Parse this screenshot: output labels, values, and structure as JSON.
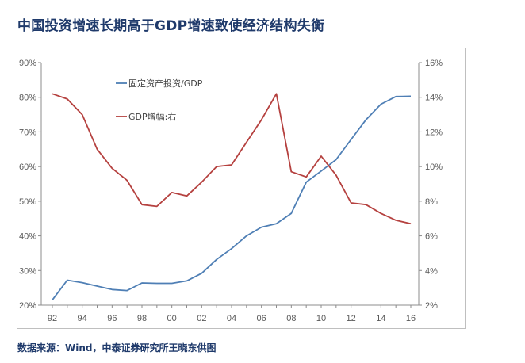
{
  "title": "中国投资增速长期高于GDP增速致使经济结构失衡",
  "source": "数据来源：Wind，中泰证券研究所王晓东供图",
  "chart_data": {
    "type": "line",
    "categories": [
      "92",
      "93",
      "94",
      "95",
      "96",
      "97",
      "98",
      "99",
      "00",
      "01",
      "02",
      "03",
      "04",
      "05",
      "06",
      "07",
      "08",
      "09",
      "10",
      "11",
      "12",
      "13",
      "14",
      "15",
      "16"
    ],
    "x_tick_labels": [
      "92",
      "94",
      "96",
      "98",
      "00",
      "02",
      "04",
      "06",
      "08",
      "10",
      "12",
      "14",
      "16"
    ],
    "series": [
      {
        "name": "固定资产投资/GDP",
        "axis": "left",
        "color": "#4f7fb5",
        "values": [
          21.5,
          27.2,
          26.5,
          25.5,
          24.5,
          24.2,
          26.4,
          26.3,
          26.3,
          27.0,
          29.2,
          33.2,
          36.3,
          40.0,
          42.5,
          43.5,
          46.5,
          55.5,
          58.7,
          62.0,
          67.8,
          73.5,
          78.0,
          80.2,
          80.3
        ]
      },
      {
        "name": "GDP增幅:右",
        "axis": "right",
        "color": "#b5413f",
        "values": [
          14.2,
          13.9,
          13.0,
          11.0,
          9.9,
          9.2,
          7.8,
          7.7,
          8.5,
          8.3,
          9.1,
          10.0,
          10.1,
          11.4,
          12.7,
          14.2,
          9.7,
          9.4,
          10.6,
          9.5,
          7.9,
          7.8,
          7.3,
          6.9,
          6.7
        ]
      }
    ],
    "y_left": {
      "ticks": [
        "20%",
        "30%",
        "40%",
        "50%",
        "60%",
        "70%",
        "80%",
        "90%"
      ],
      "range": [
        20,
        90
      ]
    },
    "y_right": {
      "ticks": [
        "2%",
        "4%",
        "6%",
        "8%",
        "10%",
        "12%",
        "14%",
        "16%"
      ],
      "range": [
        2,
        16
      ]
    },
    "legend": [
      "固定资产投资/GDP",
      "GDP增幅:右"
    ],
    "grid": false
  }
}
